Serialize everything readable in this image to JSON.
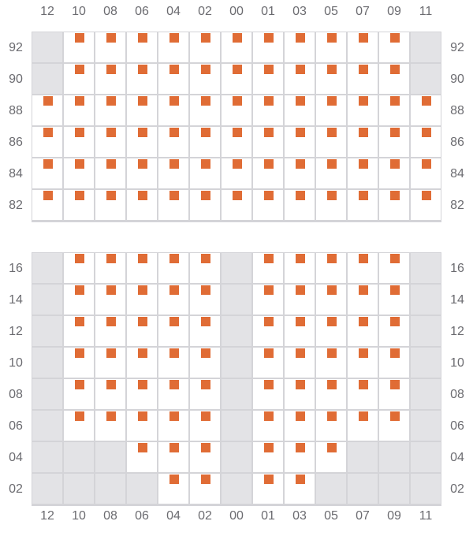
{
  "columns": [
    "12",
    "10",
    "08",
    "06",
    "04",
    "02",
    "00",
    "01",
    "03",
    "05",
    "07",
    "09",
    "11"
  ],
  "colors": {
    "seat": "#e06c35",
    "unavailable": "#e3e3e6",
    "border": "#d4d4d8"
  },
  "sections": [
    {
      "rows": [
        {
          "label": "92",
          "cells": "GSSSSSSSSSSSG"
        },
        {
          "label": "90",
          "cells": "GSSSSSSSSSSSG"
        },
        {
          "label": "88",
          "cells": "SSSSSSSSSSSSS"
        },
        {
          "label": "86",
          "cells": "SSSSSSSSSSSSS"
        },
        {
          "label": "84",
          "cells": "SSSSSSSSSSSSS"
        },
        {
          "label": "82",
          "cells": "SSSSSSSSSSSSS"
        }
      ]
    },
    {
      "rows": [
        {
          "label": "16",
          "cells": "GSSSSSGSSSSSG"
        },
        {
          "label": "14",
          "cells": "GSSSSSGSSSSSG"
        },
        {
          "label": "12",
          "cells": "GSSSSSGSSSSSG"
        },
        {
          "label": "10",
          "cells": "GSSSSSGSSSSSG"
        },
        {
          "label": "08",
          "cells": "GSSSSSGSSSSSG"
        },
        {
          "label": "06",
          "cells": "GSSSSSGSSSSSG"
        },
        {
          "label": "04",
          "cells": "GGGSSSGSSSGGG"
        },
        {
          "label": "02",
          "cells": "GGGGSSGSSGGGG"
        }
      ]
    }
  ]
}
